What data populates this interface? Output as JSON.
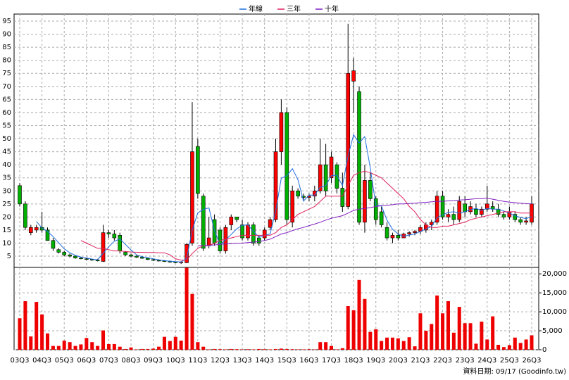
{
  "chart_data": [
    {
      "type": "candlestick",
      "categories": [
        "03Q3",
        null,
        null,
        null,
        "04Q3",
        null,
        null,
        null,
        "05Q3",
        null,
        null,
        null,
        "06Q3",
        null,
        null,
        null,
        "07Q3",
        null,
        null,
        null,
        "08Q3",
        null,
        null,
        null,
        "09Q3",
        null,
        null,
        null,
        "10Q3",
        null,
        null,
        null,
        "11Q3",
        null,
        null,
        null,
        "12Q3",
        null,
        null,
        null,
        "13Q3",
        null,
        null,
        null,
        "14Q3",
        null,
        null,
        null,
        "15Q3",
        null,
        null,
        null,
        "16Q3",
        null,
        null,
        null,
        "17Q3",
        null,
        null,
        null,
        "18Q3",
        null,
        null,
        null,
        "19Q3",
        null,
        null,
        null,
        "20Q3",
        null,
        null,
        null,
        "21Q3",
        null,
        null,
        null,
        "22Q3",
        null,
        null,
        null,
        "23Q3",
        null,
        null,
        null,
        "24Q3",
        null,
        null,
        null,
        "25Q3",
        null,
        null,
        null,
        "26Q3"
      ],
      "open": [
        32,
        25,
        14,
        15,
        16,
        15,
        11,
        7.5,
        6.5,
        5.5,
        5,
        4.3,
        4,
        3.8,
        3.5,
        3,
        14,
        13.5,
        13,
        6.5,
        5.5,
        5,
        4.6,
        4.2,
        3.7,
        3.4,
        3.2,
        3,
        2.8,
        2.5,
        2.5,
        10,
        47,
        28,
        9,
        19,
        15,
        7,
        17,
        20,
        17,
        12,
        17,
        12,
        12,
        16,
        19,
        45,
        60,
        18,
        30,
        28,
        27.5,
        28,
        30,
        40,
        35,
        40,
        31,
        24,
        72,
        68,
        18,
        34,
        27,
        22,
        16,
        12,
        13,
        12,
        13.5,
        14,
        14.5,
        15,
        17,
        18,
        28,
        20,
        21,
        19,
        25,
        22,
        23,
        21,
        23,
        24,
        23,
        21,
        20,
        21,
        19,
        18,
        18
      ],
      "high": [
        33,
        26,
        17,
        17,
        22,
        16,
        12,
        8,
        7,
        6,
        5.2,
        4.6,
        4.5,
        4,
        4,
        17,
        15,
        15,
        14,
        7,
        6,
        5.5,
        5,
        4.5,
        4,
        3.8,
        3.5,
        3.3,
        3,
        3,
        10,
        64,
        50,
        29,
        20,
        21,
        16,
        17,
        21,
        20,
        19,
        18,
        18,
        13,
        16,
        20,
        50,
        65,
        62,
        32,
        31,
        29,
        29,
        32,
        50,
        48,
        45,
        41,
        37,
        94,
        81,
        70,
        40,
        37,
        28,
        24,
        18,
        14,
        15,
        14,
        14.5,
        15,
        17,
        18,
        19,
        30,
        30,
        23,
        24,
        28,
        28,
        26,
        25,
        24,
        32,
        26,
        25,
        22,
        24,
        22,
        20,
        20,
        28
      ],
      "low": [
        24,
        15,
        13,
        14,
        14,
        11,
        7,
        6,
        5,
        4.5,
        4,
        3.8,
        3.5,
        3.2,
        3,
        2.8,
        12,
        11,
        6,
        5,
        4.5,
        4.3,
        4,
        3.5,
        3.2,
        3,
        2.8,
        2.5,
        2.3,
        2,
        2.3,
        9,
        27,
        7,
        8,
        9,
        6,
        6,
        15,
        18,
        11,
        11,
        9,
        9,
        11,
        15,
        18,
        40,
        17,
        16,
        27,
        26,
        26,
        26,
        29,
        28,
        33,
        29,
        22,
        23,
        60,
        17,
        14,
        26,
        17,
        16,
        11,
        10,
        11,
        12,
        12.5,
        13,
        13.5,
        14,
        15,
        17,
        19,
        18,
        17,
        18,
        20,
        21,
        20,
        20,
        22,
        22,
        20,
        19,
        19,
        18,
        17,
        17,
        17
      ],
      "close": [
        25,
        16,
        16,
        16,
        15,
        11,
        8,
        6.5,
        5.5,
        5,
        4.3,
        4,
        3.8,
        3.5,
        3.2,
        14,
        13.5,
        12,
        7,
        5.5,
        5,
        4.6,
        4.2,
        3.7,
        3.4,
        3.2,
        3,
        2.8,
        2.5,
        2.8,
        9.5,
        45,
        29,
        8,
        12,
        10,
        7,
        16,
        20,
        19,
        12,
        17,
        10,
        10,
        15,
        19,
        45,
        60,
        19,
        30,
        28,
        27.5,
        28,
        30,
        40,
        30,
        43,
        31,
        24,
        75,
        76,
        18,
        34,
        27,
        19,
        17,
        12,
        13,
        12,
        13.5,
        14,
        14.5,
        16,
        17,
        18,
        28,
        20,
        21,
        19,
        26,
        22,
        24,
        21,
        23,
        25,
        23,
        21,
        20,
        22,
        19,
        18,
        18.5,
        25
      ],
      "up_color": "#ff0000",
      "down_color": "#00b000",
      "series": [
        {
          "name": "年線",
          "color": "#1e6ee0",
          "values": [
            null,
            null,
            null,
            18.3,
            15.8,
            14.5,
            12.5,
            10.1,
            7.8,
            6.3,
            5.3,
            4.7,
            4.3,
            3.9,
            3.6,
            6.1,
            8.6,
            10.7,
            11.6,
            9.5,
            7.4,
            5.5,
            4.8,
            4.4,
            4,
            3.6,
            3.3,
            3.1,
            2.9,
            2.8,
            4.2,
            15,
            21.6,
            22.9,
            23.5,
            14.8,
            9.3,
            11.3,
            13.3,
            15.5,
            16.8,
            17,
            14.5,
            12.3,
            13,
            13.5,
            22.3,
            34.8,
            35.8,
            38.5,
            34.3,
            26.1,
            28.4,
            28.4,
            31.4,
            32,
            35.8,
            36,
            32,
            43.3,
            51.5,
            48.3,
            50.8,
            38.8,
            24.5,
            24.3,
            18.8,
            15.3,
            13.5,
            12.6,
            13.1,
            13.5,
            14.5,
            15.4,
            16.4,
            19.8,
            20.8,
            21.8,
            22,
            21.5,
            22,
            22.8,
            23.3,
            22.5,
            23.3,
            23,
            23,
            22.3,
            21.5,
            20.5,
            19.8,
            19.4,
            20.1
          ]
        },
        {
          "name": "三年",
          "color": "#e0205a",
          "values": [
            null,
            null,
            null,
            null,
            null,
            null,
            null,
            null,
            null,
            null,
            null,
            11,
            10,
            9,
            8,
            8,
            7.5,
            7,
            7,
            6.8,
            6.6,
            6.5,
            6.5,
            6.4,
            6.4,
            6.3,
            6.3,
            5.5,
            4,
            3.5,
            3.5,
            6,
            8,
            9,
            9,
            10,
            11,
            11.5,
            12,
            12.5,
            13,
            13,
            13,
            13,
            13,
            13,
            14,
            16,
            17,
            19,
            21,
            22,
            23,
            24,
            26,
            28,
            28,
            28,
            28,
            32,
            36,
            37,
            37.5,
            37,
            36,
            35,
            33,
            31,
            29,
            27,
            24,
            22,
            19,
            17,
            16,
            16,
            16.5,
            16.5,
            17,
            17.5,
            18,
            19,
            19.5,
            20,
            20.5,
            21,
            21.5,
            22,
            22,
            22,
            21.5,
            21.5,
            21.5
          ]
        },
        {
          "name": "十年",
          "color": "#8020c0",
          "values": [
            null,
            null,
            null,
            null,
            null,
            null,
            null,
            null,
            null,
            null,
            null,
            null,
            null,
            null,
            null,
            null,
            null,
            null,
            null,
            null,
            null,
            null,
            null,
            null,
            null,
            null,
            null,
            null,
            null,
            null,
            null,
            null,
            9,
            9,
            9.2,
            9.3,
            9.5,
            9.7,
            9.8,
            10,
            10,
            10.2,
            10.4,
            10.6,
            11,
            11.5,
            12.5,
            13.5,
            14,
            14.8,
            15.5,
            16,
            16.7,
            17.3,
            18,
            18.8,
            19.5,
            20,
            20.5,
            21.5,
            22.5,
            23,
            23.3,
            23.6,
            24,
            24.3,
            24.5,
            24.7,
            25,
            25,
            25.2,
            25.3,
            25.5,
            25.6,
            25.8,
            26,
            26,
            26.2,
            26.3,
            26.5,
            26.6,
            26.8,
            27,
            27,
            27.2,
            26.8,
            26.4,
            26,
            25.7,
            25.5,
            25.3,
            25.1,
            25
          ]
        }
      ],
      "ylim": [
        0.7,
        97.7
      ],
      "yticks": [
        5,
        10,
        15,
        20,
        25,
        30,
        35,
        40,
        45,
        50,
        55,
        60,
        65,
        70,
        75,
        80,
        85,
        90,
        95
      ],
      "grid": true
    },
    {
      "type": "bar",
      "color": "#ee0000",
      "values": [
        8300,
        12800,
        3500,
        12600,
        9300,
        4300,
        1000,
        1000,
        2400,
        2000,
        1000,
        1400,
        3100,
        2000,
        1000,
        5100,
        1500,
        1500,
        800,
        200,
        600,
        100,
        200,
        200,
        300,
        800,
        3400,
        2300,
        3400,
        2400,
        21600,
        14700,
        2000,
        800,
        100,
        200,
        150,
        100,
        200,
        150,
        100,
        150,
        100,
        200,
        150,
        100,
        200,
        300,
        200,
        150,
        100,
        100,
        150,
        100,
        2000,
        2000,
        1000,
        100,
        400,
        11500,
        10400,
        18400,
        13400,
        4700,
        5400,
        2300,
        3200,
        3200,
        3000,
        2300,
        3300,
        900,
        9600,
        5000,
        6800,
        14300,
        9600,
        12800,
        4500,
        11300,
        7000,
        7000,
        1600,
        7400,
        2700,
        8800,
        1300,
        700,
        1200,
        3200,
        1800,
        2700,
        3800
      ],
      "ylim": [
        0,
        21700
      ],
      "yticks": [
        0,
        {
          "value": 5000,
          "label": "5,000"
        },
        {
          "value": 10000,
          "label": "10,000"
        },
        {
          "value": 15000,
          "label": "15,000"
        },
        {
          "value": 20000,
          "label": "20,000"
        }
      ]
    }
  ],
  "footer": "資料日期: 09/17 (Goodinfo.tw)"
}
